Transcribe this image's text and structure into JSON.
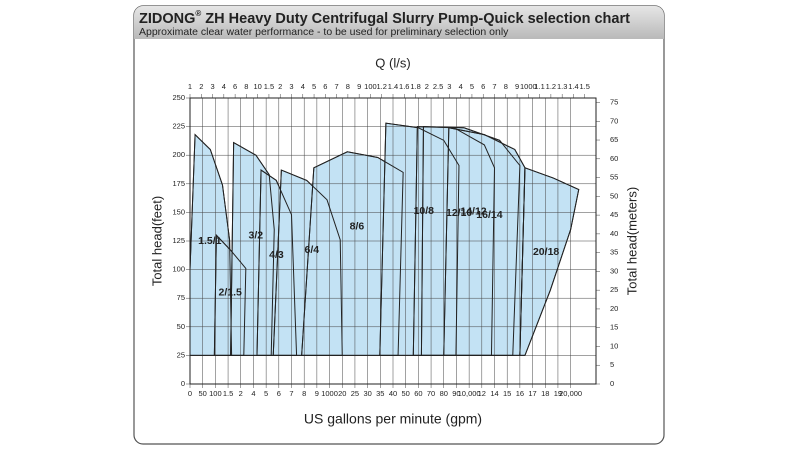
{
  "chart_data": {
    "type": "region",
    "brand": "ZIDONG",
    "brand_mark": "®",
    "title": "ZH Heavy Duty Centrifugal Slurry Pump-Quick selection chart",
    "subtitle": "Approximate clear water performance - to be used for preliminary selection only",
    "x_label": "US gallons per minute (gpm)",
    "x2_label": "Q (l/s)",
    "y_label": "Total head(feet)",
    "y2_label": "Total head(meters)",
    "grid": true,
    "xlim": [
      0,
      22000
    ],
    "xticks": [
      0,
      50,
      100,
      {
        "value": 150,
        "label": "1.5"
      },
      {
        "value": 200,
        "label": "2"
      },
      {
        "value": 400,
        "label": "4"
      },
      {
        "value": 500,
        "label": "5"
      },
      {
        "value": 600,
        "label": "6"
      },
      {
        "value": 700,
        "label": "7"
      },
      {
        "value": 800,
        "label": "8"
      },
      {
        "value": 900,
        "label": "9"
      },
      1000,
      {
        "value": 2000,
        "label": "20"
      },
      {
        "value": 2500,
        "label": "25"
      },
      {
        "value": 3000,
        "label": "30"
      },
      {
        "value": 3500,
        "label": "35"
      },
      {
        "value": 4000,
        "label": "40"
      },
      {
        "value": 5000,
        "label": "50"
      },
      {
        "value": 6000,
        "label": "60"
      },
      {
        "value": 7000,
        "label": "70"
      },
      {
        "value": 8000,
        "label": "80"
      },
      {
        "value": 9000,
        "label": "90"
      },
      {
        "value": 10000,
        "label": "10,000"
      },
      {
        "value": 12000,
        "label": "12"
      },
      {
        "value": 14000,
        "label": "14"
      },
      {
        "value": 15000,
        "label": "15"
      },
      {
        "value": 16000,
        "label": "16"
      },
      {
        "value": 17000,
        "label": "17"
      },
      {
        "value": 18000,
        "label": "18"
      },
      {
        "value": 19000,
        "label": "19"
      },
      {
        "value": 20000,
        "label": "20,000"
      }
    ],
    "x2lim": [
      1,
      1600
    ],
    "x2ticks": [
      1,
      2,
      3,
      4,
      6,
      8,
      10,
      {
        "value": 15,
        "label": "1.5"
      },
      {
        "value": 20,
        "label": "2"
      },
      {
        "value": 30,
        "label": "3"
      },
      {
        "value": 40,
        "label": "4"
      },
      {
        "value": 50,
        "label": "5"
      },
      {
        "value": 60,
        "label": "6"
      },
      {
        "value": 70,
        "label": "7"
      },
      {
        "value": 80,
        "label": "8"
      },
      {
        "value": 90,
        "label": "9"
      },
      100,
      {
        "value": 120,
        "label": "1.2"
      },
      {
        "value": 140,
        "label": "1.4"
      },
      {
        "value": 160,
        "label": "1.6"
      },
      {
        "value": 180,
        "label": "1.8"
      },
      {
        "value": 200,
        "label": "2"
      },
      {
        "value": 250,
        "label": "2.5"
      },
      {
        "value": 300,
        "label": "3"
      },
      {
        "value": 400,
        "label": "4"
      },
      {
        "value": 500,
        "label": "5"
      },
      {
        "value": 600,
        "label": "6"
      },
      {
        "value": 700,
        "label": "7"
      },
      {
        "value": 800,
        "label": "8"
      },
      {
        "value": 900,
        "label": "9"
      },
      1000,
      {
        "value": 1100,
        "label": "1.1"
      },
      {
        "value": 1200,
        "label": "1.2"
      },
      {
        "value": 1300,
        "label": "1.3"
      },
      {
        "value": 1400,
        "label": "1.4"
      },
      {
        "value": 1500,
        "label": "1.5"
      }
    ],
    "ylim": [
      0,
      250
    ],
    "yticks": [
      0,
      25,
      50,
      75,
      100,
      125,
      150,
      175,
      200,
      225,
      250
    ],
    "y2lim": [
      0,
      76.2
    ],
    "y2ticks": [
      0,
      5,
      10,
      15,
      20,
      25,
      30,
      35,
      40,
      45,
      50,
      55,
      60,
      65,
      70,
      75
    ],
    "series": [
      {
        "name": "1.5/1",
        "color": "#c3e2f4",
        "x": [
          0,
          0,
          20,
          80,
          128,
          156,
          164
        ],
        "values": [
          25,
          100,
          218,
          205,
          174,
          126,
          25
        ]
      },
      {
        "name": "2/1.5",
        "color": "#c3e2f4",
        "x": [
          96,
          104,
          160,
          280,
          248
        ],
        "values": [
          25,
          130,
          117,
          101,
          25
        ]
      },
      {
        "name": "3/2",
        "color": "#c3e2f4",
        "x": [
          160,
          172,
          420,
          524,
          564,
          540
        ],
        "values": [
          25,
          211,
          200,
          183,
          135,
          25
        ]
      },
      {
        "name": "4/3",
        "color": "#c3e2f4",
        "x": [
          428,
          460,
          580,
          700,
          740
        ],
        "values": [
          25,
          187,
          178,
          148,
          25
        ]
      },
      {
        "name": "6/4",
        "color": "#c3e2f4",
        "x": [
          556,
          620,
          820,
          980,
          1840,
          2000
        ],
        "values": [
          25,
          187,
          178,
          161,
          126,
          25
        ]
      },
      {
        "name": "8/6",
        "color": "#c3e2f4",
        "x": [
          780,
          876,
          2200,
          3400,
          4800,
          4400
        ],
        "values": [
          25,
          189,
          203,
          198,
          185,
          25
        ]
      },
      {
        "name": "10/8",
        "color": "#c3e2f4",
        "x": [
          3480,
          3720,
          6000,
          8000,
          9200,
          8960
        ],
        "values": [
          25,
          228,
          224,
          213,
          191,
          25
        ]
      },
      {
        "name": "12/10",
        "color": "#c3e2f4",
        "x": [
          5600,
          5920,
          8800,
          12400,
          14000,
          13520
        ],
        "values": [
          25,
          225,
          224,
          209,
          189,
          25
        ]
      },
      {
        "name": "14/12",
        "color": "#c3e2f4",
        "x": [
          6240,
          6400,
          9600,
          14400,
          16000,
          15440
        ],
        "values": [
          25,
          225,
          224,
          213,
          191,
          25
        ]
      },
      {
        "name": "16/14",
        "color": "#c3e2f4",
        "x": [
          8000,
          8400,
          12400,
          15600,
          16400,
          16000
        ],
        "values": [
          25,
          224,
          218,
          205,
          189,
          25
        ]
      },
      {
        "name": "20/18",
        "color": "#c3e2f4",
        "x": [
          16000,
          16400,
          18640,
          20640,
          20000,
          18400,
          16400
        ],
        "values": [
          25,
          189,
          180,
          170,
          135,
          82,
          25
        ]
      }
    ]
  }
}
